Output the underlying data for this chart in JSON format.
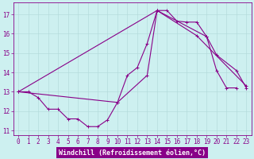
{
  "title": "",
  "xlabel": "Windchill (Refroidissement éolien,°C)",
  "bg_color": "#cdf0f0",
  "line_color": "#880088",
  "xlim_min": -0.5,
  "xlim_max": 23.5,
  "ylim_min": 10.75,
  "ylim_max": 17.6,
  "yticks": [
    11,
    12,
    13,
    14,
    15,
    16,
    17
  ],
  "xticks": [
    0,
    1,
    2,
    3,
    4,
    5,
    6,
    7,
    8,
    9,
    10,
    11,
    12,
    13,
    14,
    15,
    16,
    17,
    18,
    19,
    20,
    21,
    22,
    23
  ],
  "line1_x": [
    0,
    1,
    2,
    3,
    4,
    5,
    6,
    7,
    8,
    9,
    10,
    11,
    12,
    13,
    14,
    15,
    16,
    17,
    18,
    19,
    20,
    21,
    22
  ],
  "line1_y": [
    13.0,
    13.0,
    12.7,
    12.1,
    12.1,
    11.6,
    11.6,
    11.2,
    11.2,
    11.55,
    12.45,
    13.85,
    14.25,
    15.5,
    17.2,
    17.2,
    16.65,
    16.6,
    16.6,
    15.85,
    14.1,
    13.2,
    13.2
  ],
  "line2_x": [
    0,
    10,
    13,
    14,
    19,
    20,
    22,
    23
  ],
  "line2_y": [
    13.0,
    12.45,
    13.85,
    17.2,
    15.85,
    14.9,
    14.1,
    13.2
  ],
  "line3_x": [
    0,
    14,
    18,
    23
  ],
  "line3_y": [
    13.0,
    17.2,
    15.9,
    13.3
  ],
  "xlabel_bg": "#880088",
  "xlabel_fg": "#ffffff",
  "tick_fontsize": 5.5,
  "xlabel_fontsize": 6.0,
  "grid_color": "#b0d8d8",
  "marker_size": 3.0,
  "line_width": 0.8
}
